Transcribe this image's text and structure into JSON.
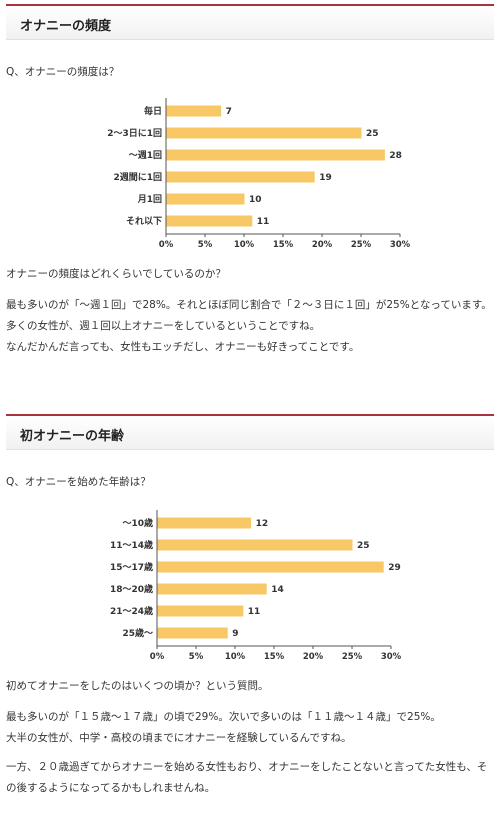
{
  "section1": {
    "title": "オナニーの頻度",
    "question": "Q、オナニーの頻度は？",
    "paragraphs": [
      "オナニーの頻度はどれくらいでしているのか？",
      "最も多いのが「～週１回」で28%。それとほぼ同じ割合で「２～３日に１回」が25%となっています。",
      "多くの女性が、週１回以上オナニーをしているということですね。",
      "なんだかんだ言っても、女性もエッチだし、オナニーも好きってことです。"
    ]
  },
  "section2": {
    "title": "初オナニーの年齢",
    "question": "Q、オナニーを始めた年齢は？",
    "paragraphs": [
      "初めてオナニーをしたのはいくつの頃か？という質問。",
      "最も多いのが「１５歳～１７歳」の頃で29%。次いで多いのは「１１歳～１４歳」で25%。",
      "大半の女性が、中学・高校の頃までにオナニーを経験しているんですね。",
      "一方、２０歳過ぎてからオナニーを始める女性もおり、オナニーをしたことないと言ってた女性も、その後するようになってるかもしれませんね。"
    ]
  },
  "colors": {
    "bar": "#f8c766",
    "accent": "#a8323d"
  },
  "chart_data": [
    {
      "type": "bar",
      "orientation": "horizontal",
      "categories": [
        "毎日",
        "2～3日に1回",
        "～週1回",
        "2週間に1回",
        "月1回",
        "それ以下"
      ],
      "values": [
        7,
        25,
        28,
        19,
        10,
        11
      ],
      "xticks": [
        "0%",
        "5%",
        "10%",
        "15%",
        "20%",
        "25%",
        "30%"
      ],
      "xlim": [
        0,
        30
      ],
      "grid": false
    },
    {
      "type": "bar",
      "orientation": "horizontal",
      "categories": [
        "～10歳",
        "11～14歳",
        "15～17歳",
        "18～20歳",
        "21～24歳",
        "25歳～"
      ],
      "values": [
        12,
        25,
        29,
        14,
        11,
        9
      ],
      "xticks": [
        "0%",
        "5%",
        "10%",
        "15%",
        "20%",
        "25%",
        "30%"
      ],
      "xlim": [
        0,
        30
      ],
      "grid": false
    }
  ]
}
